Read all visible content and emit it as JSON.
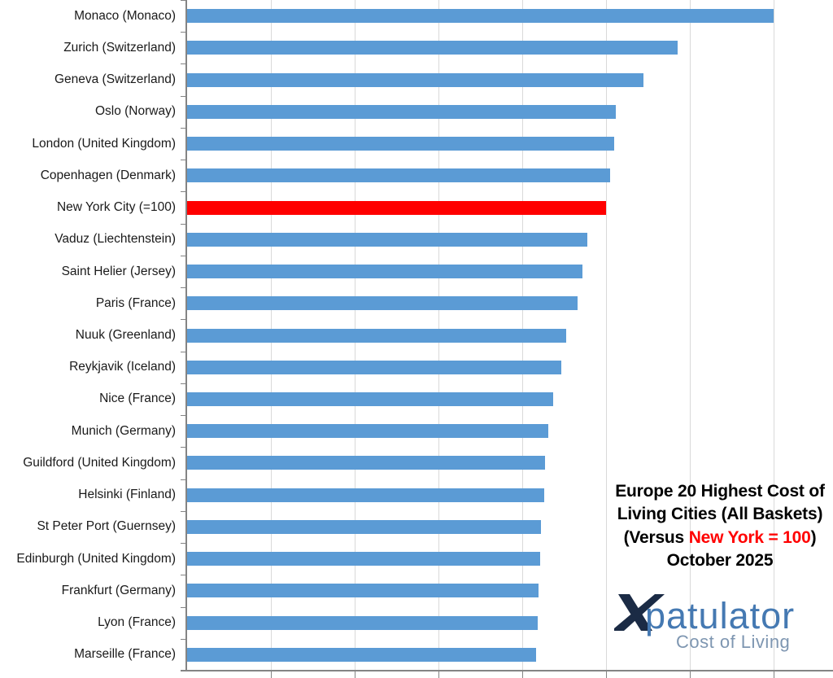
{
  "chart_data": {
    "type": "bar",
    "orientation": "horizontal",
    "title": "Europe 20 Highest Cost of Living Cities (All Baskets) (Versus New York = 100) October 2025",
    "categories": [
      "Monaco (Monaco)",
      "Zurich (Switzerland)",
      "Geneva (Switzerland)",
      "Oslo (Norway)",
      "London (United Kingdom)",
      "Copenhagen (Denmark)",
      "New York City (=100)",
      "Vaduz (Liechtenstein)",
      "Saint Helier (Jersey)",
      "Paris (France)",
      "Nuuk (Greenland)",
      "Reykjavik (Iceland)",
      "Nice (France)",
      "Munich (Germany)",
      "Guildford (United Kingdom)",
      "Helsinki (Finland)",
      "St Peter Port (Guernsey)",
      "Edinburgh (United Kingdom)",
      "Frankfurt (Germany)",
      "Lyon (France)",
      "Marseille (France)"
    ],
    "values": [
      140.0,
      117.0,
      109.0,
      102.3,
      102.0,
      101.0,
      100.0,
      95.5,
      94.4,
      93.3,
      90.5,
      89.3,
      87.4,
      86.2,
      85.4,
      85.2,
      84.5,
      84.3,
      83.9,
      83.6,
      83.3
    ],
    "highlight_index": 6,
    "xlim": [
      0,
      154
    ],
    "gridline_values": [
      20,
      40,
      60,
      80,
      100,
      120,
      140
    ],
    "x_tick_labels_visible": false,
    "grid": "vertical",
    "legend": "none",
    "colors": {
      "bar": "#5B9BD5",
      "highlight": "#FF0000",
      "gridline": "#D9D9D9",
      "axis": "#848484",
      "label_text": "#1a1a1a"
    }
  },
  "title_block": {
    "line1": "Europe 20 Highest Cost of",
    "line2": "Living Cities (All Baskets)",
    "line3_prefix": "(Versus ",
    "line3_highlight": "New York = 100",
    "line3_suffix": ")",
    "line4": "October 2025",
    "highlight_color": "#FF0000"
  },
  "logo": {
    "brand": "patulator",
    "tagline": "Cost of Living",
    "colors": {
      "x": "#1B2B45",
      "brand": "#4579B2",
      "tagline": "#7E96B1"
    }
  }
}
